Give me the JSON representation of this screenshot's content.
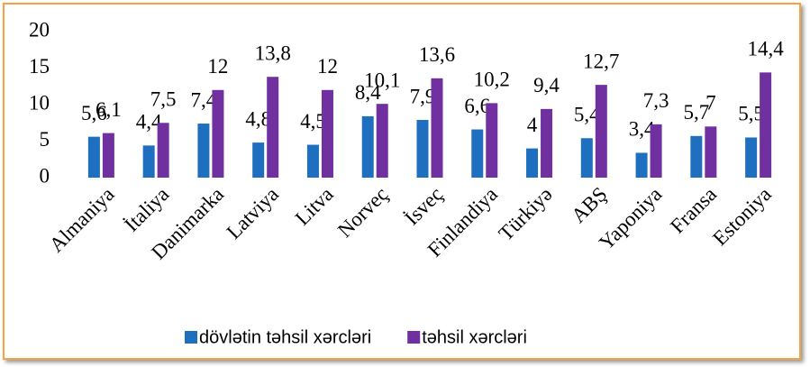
{
  "chart_data": {
    "type": "bar",
    "categories": [
      "Almaniya",
      "İtaliya",
      "Danimarka",
      "Latviya",
      "Litva",
      "Norveç",
      "İsveç",
      "Finlandiya",
      "Türkiyə",
      "ABŞ",
      "Yaponiya",
      "Fransa",
      "Estoniya"
    ],
    "series": [
      {
        "name": "dövlətin təhsil xərcləri",
        "color": "#1f6fc0",
        "values": [
          5.6,
          4.4,
          7.4,
          4.8,
          4.5,
          8.4,
          7.9,
          6.6,
          4,
          5.4,
          3.4,
          5.7,
          5.5
        ],
        "value_labels": [
          "5,6",
          "4,4",
          "7,4",
          "4,8",
          "4,5",
          "8,4",
          "7,9",
          "6,6",
          "4",
          "5,4",
          "3,4",
          "5,7",
          "5,5"
        ]
      },
      {
        "name": "təhsil xərcləri",
        "color": "#7030a0",
        "values": [
          6.1,
          7.5,
          12,
          13.8,
          12,
          10.1,
          13.6,
          10.2,
          9.4,
          12.7,
          7.3,
          7,
          14.4
        ],
        "value_labels": [
          "6,1",
          "7,5",
          "12",
          "13,8",
          "12",
          "10,1",
          "13,6",
          "10,2",
          "9,4",
          "12,7",
          "7,3",
          "7",
          "14,4"
        ]
      }
    ],
    "ylim": [
      0,
      20
    ],
    "yticks": [
      0,
      5,
      10,
      15,
      20
    ],
    "grid": false,
    "legend": "bottom"
  }
}
